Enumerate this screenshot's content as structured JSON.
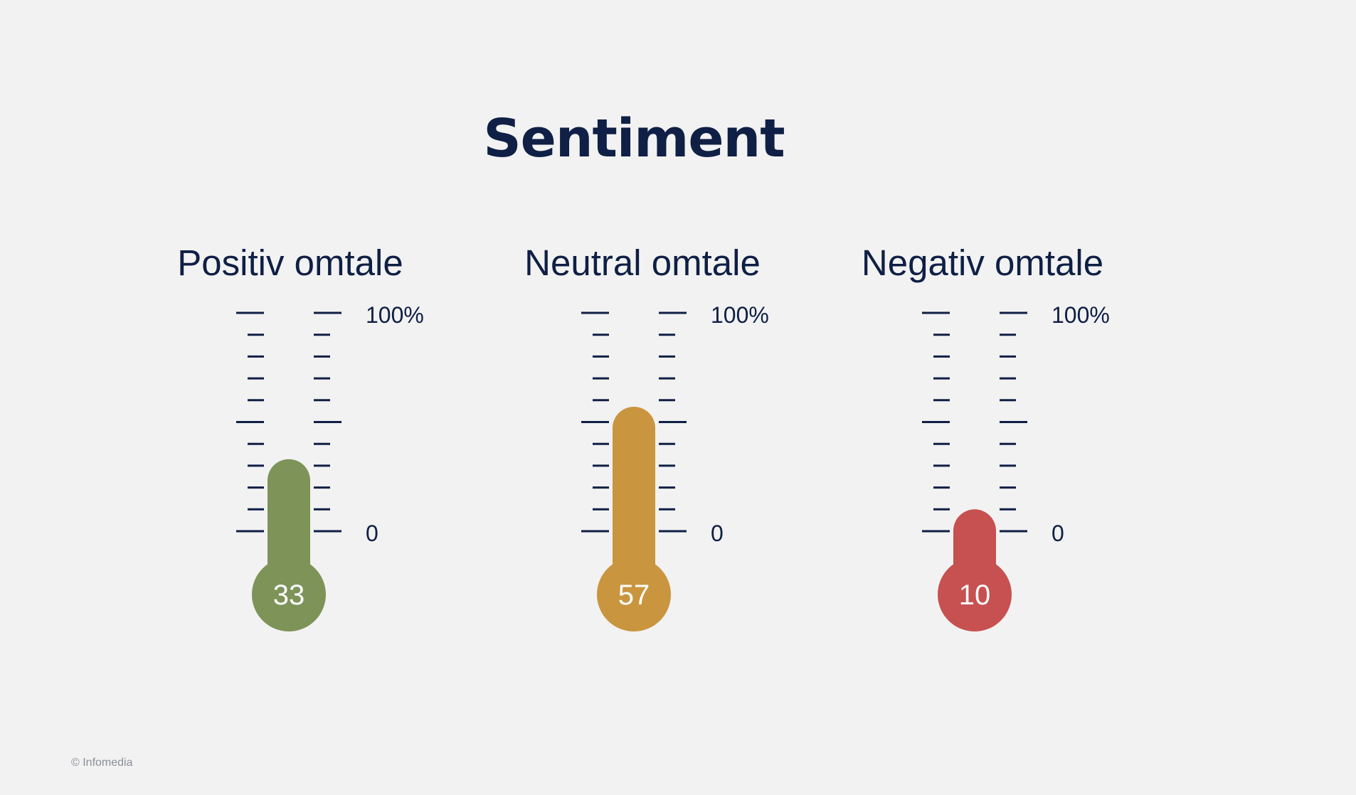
{
  "page": {
    "title": "Sentiment",
    "copyright": "© Infomedia"
  },
  "colors": {
    "text": "#0f1f45",
    "background": "#f2f2f2",
    "tick": "#0f1f45",
    "value_text": "#ffffff"
  },
  "chart_data": {
    "type": "thermometer",
    "title": "Sentiment",
    "scale_min_label": "0",
    "scale_max_label": "100%",
    "ylim": [
      0,
      100
    ],
    "gauges": [
      {
        "name": "Positiv omtale",
        "value": 33,
        "value_label": "33",
        "color": "#7e9358"
      },
      {
        "name": "Neutral omtale",
        "value": 57,
        "value_label": "57",
        "color": "#c9953e"
      },
      {
        "name": "Negativ omtale",
        "value": 10,
        "value_label": "10",
        "color": "#c65150"
      }
    ]
  }
}
